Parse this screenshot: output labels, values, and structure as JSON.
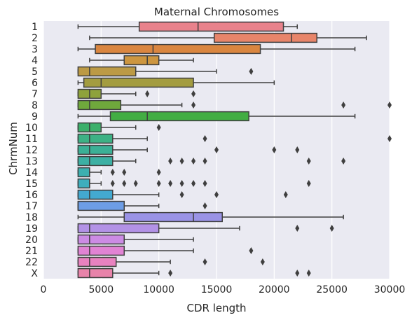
{
  "chart_data": {
    "type": "boxplot-horizontal",
    "title": "Maternal Chromosomes",
    "xlabel": "CDR length",
    "ylabel": "ChrmNum",
    "xlim": [
      0,
      30000
    ],
    "xticks": [
      0,
      5000,
      10000,
      15000,
      20000,
      25000,
      30000
    ],
    "grid": true,
    "orientation": "horizontal",
    "categories": [
      "1",
      "2",
      "3",
      "4",
      "5",
      "6",
      "7",
      "8",
      "9",
      "10",
      "11",
      "12",
      "13",
      "14",
      "15",
      "16",
      "17",
      "18",
      "19",
      "20",
      "21",
      "22",
      "X"
    ],
    "series": [
      {
        "category": "1",
        "color": "#e8828c",
        "whisker_low": 3000,
        "q1": 8300,
        "median": 13400,
        "q3": 20800,
        "whisker_high": 22000,
        "outliers": []
      },
      {
        "category": "2",
        "color": "#e8856a",
        "whisker_low": 4000,
        "q1": 14800,
        "median": 21500,
        "q3": 23700,
        "whisker_high": 28000,
        "outliers": []
      },
      {
        "category": "3",
        "color": "#da8640",
        "whisker_low": 3000,
        "q1": 4500,
        "median": 9500,
        "q3": 18800,
        "whisker_high": 27000,
        "outliers": []
      },
      {
        "category": "4",
        "color": "#cd9640",
        "whisker_low": 4000,
        "q1": 7000,
        "median": 9000,
        "q3": 10000,
        "whisker_high": 13000,
        "outliers": []
      },
      {
        "category": "5",
        "color": "#bc9a45",
        "whisker_low": 3000,
        "q1": 3000,
        "median": 4000,
        "q3": 8000,
        "whisker_high": 15000,
        "outliers": [
          18000
        ]
      },
      {
        "category": "6",
        "color": "#a39c40",
        "whisker_low": 3000,
        "q1": 3500,
        "median": 5000,
        "q3": 13000,
        "whisker_high": 20000,
        "outliers": []
      },
      {
        "category": "7",
        "color": "#8ea23c",
        "whisker_low": 3000,
        "q1": 3000,
        "median": 4000,
        "q3": 5000,
        "whisker_high": 8000,
        "outliers": [
          9000,
          13000
        ]
      },
      {
        "category": "8",
        "color": "#6fa83c",
        "whisker_low": 3000,
        "q1": 3000,
        "median": 4000,
        "q3": 6700,
        "whisker_high": 12000,
        "outliers": [
          13000,
          26000,
          30000
        ]
      },
      {
        "category": "9",
        "color": "#42ad43",
        "whisker_low": 3000,
        "q1": 5800,
        "median": 9000,
        "q3": 17800,
        "whisker_high": 27000,
        "outliers": []
      },
      {
        "category": "10",
        "color": "#3cb06b",
        "whisker_low": 3000,
        "q1": 3000,
        "median": 4000,
        "q3": 5000,
        "whisker_high": 8000,
        "outliers": [
          10000
        ]
      },
      {
        "category": "11",
        "color": "#3db185",
        "whisker_low": 3000,
        "q1": 3000,
        "median": 4000,
        "q3": 6000,
        "whisker_high": 9000,
        "outliers": [
          14000,
          30000
        ]
      },
      {
        "category": "12",
        "color": "#3bb096",
        "whisker_low": 3000,
        "q1": 3000,
        "median": 4000,
        "q3": 6000,
        "whisker_high": 9000,
        "outliers": [
          15000,
          20000,
          22000
        ]
      },
      {
        "category": "13",
        "color": "#3cb0a4",
        "whisker_low": 3000,
        "q1": 3000,
        "median": 4000,
        "q3": 6000,
        "whisker_high": 8000,
        "outliers": [
          11000,
          12000,
          13000,
          14000,
          23000,
          26000
        ]
      },
      {
        "category": "14",
        "color": "#3db0b0",
        "whisker_low": 3000,
        "q1": 3000,
        "median": 4000,
        "q3": 4000,
        "whisker_high": 5000,
        "outliers": [
          6000,
          7000,
          10000
        ]
      },
      {
        "category": "15",
        "color": "#3eaebd",
        "whisker_low": 3000,
        "q1": 3000,
        "median": 4000,
        "q3": 4000,
        "whisker_high": 5000,
        "outliers": [
          6000,
          7000,
          8000,
          10000,
          11000,
          12000,
          13000,
          14000,
          23000
        ]
      },
      {
        "category": "16",
        "color": "#43a9d0",
        "whisker_low": 3000,
        "q1": 3000,
        "median": 4000,
        "q3": 6000,
        "whisker_high": 10000,
        "outliers": [
          12000,
          15000,
          21000
        ]
      },
      {
        "category": "17",
        "color": "#6d9de6",
        "whisker_low": 3000,
        "q1": 3000,
        "median": 3000,
        "q3": 7000,
        "whisker_high": 10000,
        "outliers": [
          14000
        ]
      },
      {
        "category": "18",
        "color": "#9a93e6",
        "whisker_low": 3000,
        "q1": 7000,
        "median": 13000,
        "q3": 15500,
        "whisker_high": 26000,
        "outliers": []
      },
      {
        "category": "19",
        "color": "#b392e6",
        "whisker_low": 3000,
        "q1": 3000,
        "median": 4000,
        "q3": 10000,
        "whisker_high": 17000,
        "outliers": [
          22000,
          25000
        ]
      },
      {
        "category": "20",
        "color": "#cc8be4",
        "whisker_low": 3000,
        "q1": 3000,
        "median": 4000,
        "q3": 7000,
        "whisker_high": 13000,
        "outliers": []
      },
      {
        "category": "21",
        "color": "#e183d4",
        "whisker_low": 3000,
        "q1": 3000,
        "median": 4000,
        "q3": 7000,
        "whisker_high": 13000,
        "outliers": [
          18000
        ]
      },
      {
        "category": "22",
        "color": "#e882c0",
        "whisker_low": 3000,
        "q1": 3000,
        "median": 4000,
        "q3": 6300,
        "whisker_high": 11000,
        "outliers": [
          14000,
          19000
        ]
      },
      {
        "category": "X",
        "color": "#e883aa",
        "whisker_low": 3000,
        "q1": 3000,
        "median": 4000,
        "q3": 6000,
        "whisker_high": 10000,
        "outliers": [
          11000,
          22000,
          23000
        ]
      }
    ]
  }
}
